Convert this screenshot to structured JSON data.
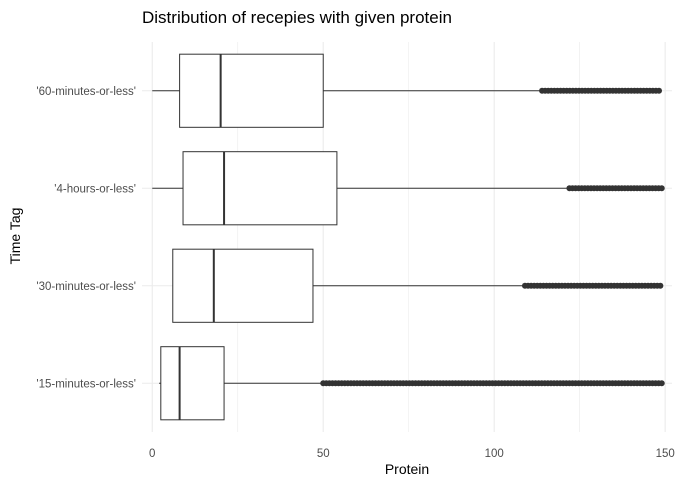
{
  "chart_data": {
    "type": "boxplot",
    "orientation": "horizontal",
    "title": "Distribution of recepies with given protein",
    "xlabel": "Protein",
    "ylabel": "Time Tag",
    "xlim": [
      -3,
      152
    ],
    "xticks": [
      0,
      50,
      100,
      150
    ],
    "minor_xticks": [
      25,
      75,
      125
    ],
    "grid": true,
    "colors": {
      "box_line": "#333333",
      "outlier": "#333333",
      "grid": "#ebebeb",
      "background": "#ffffff"
    },
    "categories": [
      "'15-minutes-or-less'",
      "'30-minutes-or-less'",
      "'4-hours-or-less'",
      "'60-minutes-or-less'"
    ],
    "boxes": [
      {
        "category": "'15-minutes-or-less'",
        "whisker_low": 2,
        "q1": 2.5,
        "median": 8,
        "q3": 21,
        "whisker_high": 50,
        "outlier_range": [
          50,
          149
        ]
      },
      {
        "category": "'30-minutes-or-less'",
        "whisker_low": 6,
        "q1": 6,
        "median": 18,
        "q3": 47,
        "whisker_high": 109,
        "outlier_range": [
          109,
          149
        ]
      },
      {
        "category": "'4-hours-or-less'",
        "whisker_low": 0,
        "q1": 9,
        "median": 21,
        "q3": 54,
        "whisker_high": 122,
        "outlier_range": [
          122,
          149
        ]
      },
      {
        "category": "'60-minutes-or-less'",
        "whisker_low": 0,
        "q1": 8,
        "median": 20,
        "q3": 50,
        "whisker_high": 114,
        "outlier_range": [
          114,
          149
        ]
      }
    ]
  }
}
